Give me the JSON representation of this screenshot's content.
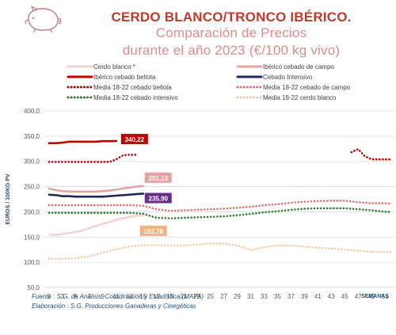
{
  "header": {
    "title_main": "CERDO BLANCO/TRONCO IBÉRICO.",
    "title_sub_1": "Comparación de Precios",
    "title_sub_2": "durante el año 2023 (€/100 kg vivo)"
  },
  "footer": {
    "source": "Fuente : S.G. de Análisis, Coordinación y Estadística (MAPA)",
    "elaboration": "Elaboración : S.G. Producciones Ganaderas y Cinegéticas"
  },
  "chart_data": {
    "type": "line",
    "xlabel": "SEMANAS",
    "ylabel": "EUROS / 100KG PV",
    "ylim": [
      50,
      400
    ],
    "yticks": [
      "50,0",
      "100,0",
      "150,0",
      "200,0",
      "250,0",
      "300,0",
      "350,0",
      "400,0"
    ],
    "xticks": [
      "1",
      "3",
      "5",
      "7",
      "9",
      "11",
      "13",
      "15",
      "17",
      "19",
      "21",
      "23",
      "25",
      "27",
      "29",
      "31",
      "33",
      "35",
      "37",
      "39",
      "41",
      "43",
      "45",
      "47",
      "49",
      "51"
    ],
    "grid": "horizontal",
    "legend_position": "top",
    "series": [
      {
        "name": "Cerdo blanco *",
        "color": "#F2D3D3",
        "style": "solid",
        "x": [
          1,
          2,
          3,
          4,
          5,
          6,
          7,
          8,
          9,
          10,
          11,
          12,
          13,
          14,
          15
        ],
        "y": [
          155,
          154,
          156,
          158,
          160,
          163,
          168,
          172,
          176,
          180,
          184,
          187,
          190,
          192,
          192.78
        ]
      },
      {
        "name": "Ibérico cebado de campo",
        "color": "#E6A3A3",
        "style": "solid",
        "x": [
          1,
          2,
          3,
          4,
          5,
          6,
          7,
          8,
          9,
          10,
          11,
          12,
          13,
          14,
          15
        ],
        "y": [
          246,
          243,
          241,
          240,
          240,
          240,
          240,
          240,
          241,
          242,
          244,
          246,
          248,
          250,
          251.13
        ]
      },
      {
        "name": "Ibérico cebado bellota",
        "color": "#C00000",
        "style": "solid",
        "x": [
          1,
          2,
          3,
          4,
          5,
          6,
          7,
          8,
          9,
          10,
          11
        ],
        "y": [
          336,
          336,
          337,
          339,
          339,
          339,
          339,
          339,
          340,
          340,
          340.22
        ]
      },
      {
        "name": "Cebado Intensivo",
        "color": "#1F2A56",
        "style": "solid",
        "x": [
          1,
          2,
          3,
          4,
          5,
          6,
          7,
          8,
          9,
          10,
          11,
          12,
          13,
          14,
          15
        ],
        "y": [
          234,
          233,
          231,
          231,
          230,
          230,
          230,
          230,
          230,
          231,
          232,
          233,
          234,
          235,
          235.9
        ]
      },
      {
        "name": "Media 18-22 cebado bellota",
        "color": "#C00000",
        "style": "dotted",
        "x": [
          1,
          3,
          5,
          7,
          9,
          10,
          11,
          12,
          13,
          14,
          46,
          47,
          48,
          49,
          50,
          51,
          52
        ],
        "y": [
          299,
          299,
          299,
          299,
          299,
          299,
          304,
          312,
          313,
          313,
          318,
          324,
          310,
          304,
          304,
          304,
          304
        ]
      },
      {
        "name": "Media 18-22 cebado de campo",
        "color": "#E07070",
        "style": "dotted",
        "x": [
          1,
          3,
          5,
          7,
          9,
          11,
          13,
          15,
          17,
          19,
          21,
          23,
          25,
          27,
          29,
          31,
          33,
          35,
          37,
          39,
          41,
          43,
          45,
          47,
          49,
          51,
          52
        ],
        "y": [
          213,
          213,
          213,
          213,
          213,
          213,
          213,
          212,
          205,
          202,
          203,
          204,
          205,
          206,
          208,
          210,
          213,
          215,
          218,
          220,
          221,
          222,
          222,
          219,
          217,
          217,
          216
        ]
      },
      {
        "name": "Media 18-22 cebado intensivo",
        "color": "#2E7D32",
        "style": "dotted",
        "x": [
          1,
          3,
          5,
          7,
          9,
          11,
          13,
          15,
          17,
          19,
          21,
          23,
          25,
          27,
          29,
          31,
          33,
          35,
          37,
          39,
          41,
          43,
          45,
          47,
          49,
          51,
          52
        ],
        "y": [
          198,
          198,
          198,
          198,
          198,
          198,
          198,
          196,
          188,
          187,
          188,
          189,
          190,
          191,
          193,
          196,
          199,
          201,
          204,
          206,
          207,
          207,
          207,
          205,
          203,
          200,
          200
        ]
      },
      {
        "name": "Media 18-22 cerdo blanco",
        "color": "#F5CBA7",
        "style": "dotted",
        "x": [
          1,
          3,
          5,
          7,
          9,
          11,
          13,
          15,
          17,
          19,
          21,
          23,
          25,
          27,
          29,
          31,
          33,
          35,
          37,
          39,
          41,
          43,
          45,
          47,
          49,
          51,
          52
        ],
        "y": [
          107,
          107,
          108,
          112,
          119,
          126,
          131,
          134,
          134,
          133,
          133,
          135,
          137,
          137,
          133,
          124,
          130,
          133,
          133,
          131,
          129,
          127,
          125,
          123,
          121,
          120,
          120
        ]
      }
    ],
    "end_labels": [
      {
        "text": "340,22",
        "color": "#C00000",
        "series": 2
      },
      {
        "text": "251,13",
        "color": "#E6A3A3",
        "series": 1
      },
      {
        "text": "235,90",
        "color": "#6A2C91",
        "series": 3
      },
      {
        "text": "192,78",
        "color": "#F4B183",
        "series": 0
      }
    ]
  }
}
